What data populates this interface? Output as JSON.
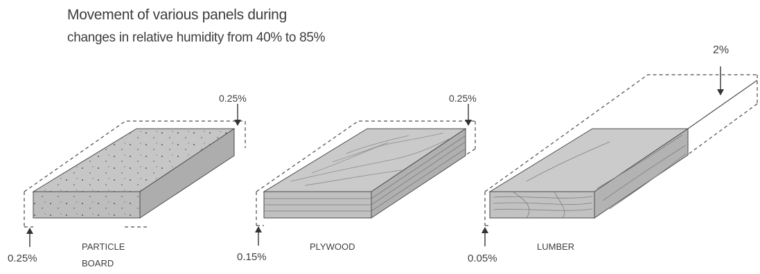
{
  "title_line1": "Movement of various panels during",
  "title_line2": "changes in relative humidity from 40% to 85%",
  "panels": [
    {
      "name": "PARTICLE",
      "name2": "BOARD",
      "top_movement": "0.25%",
      "side_movement": "0.25%"
    },
    {
      "name": "PLYWOOD",
      "top_movement": "0.25%",
      "side_movement": "0.15%"
    },
    {
      "name": "LUMBER",
      "top_movement": "2%",
      "side_movement": "0.05%"
    }
  ],
  "colors": {
    "panel_top": "#c4c4c4",
    "panel_front": "#b8b8b8",
    "panel_side": "#a9a9a9",
    "line": "#4a4a4a"
  }
}
